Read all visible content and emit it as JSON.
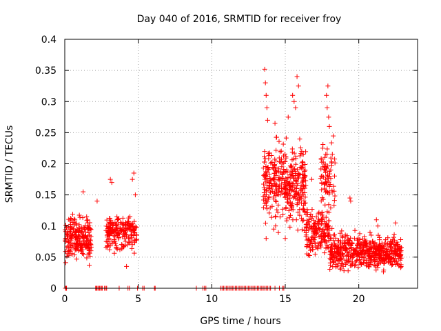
{
  "chart_data": {
    "type": "scatter",
    "title": "Day 040 of 2016, SRMTID for receiver froy",
    "xlabel": "GPS time / hours",
    "ylabel": "SRMTID / TECUs",
    "xlim": [
      0,
      24
    ],
    "ylim": [
      0,
      0.4
    ],
    "xticks": [
      0,
      5,
      10,
      15,
      20
    ],
    "xtick_labels": [
      "0",
      "5",
      "10",
      "15",
      "20"
    ],
    "yticks": [
      0,
      0.05,
      0.1,
      0.15,
      0.2,
      0.25,
      0.3,
      0.35,
      0.4
    ],
    "ytick_labels": [
      "0",
      "0.05",
      "0.1",
      "0.15",
      "0.2",
      "0.25",
      "0.3",
      "0.35",
      "0.4"
    ],
    "grid": true,
    "marker": "+",
    "color": "#ff0000",
    "series": [
      {
        "name": "SRMTID",
        "clusters": [
          {
            "x_range": [
              0.0,
              1.8
            ],
            "y_range": [
              0.03,
              0.13
            ],
            "n": 220
          },
          {
            "x_range": [
              2.8,
              4.9
            ],
            "y_range": [
              0.05,
              0.13
            ],
            "n": 200
          },
          {
            "x_range": [
              13.5,
              15.0
            ],
            "y_range": [
              0.08,
              0.26
            ],
            "n": 180
          },
          {
            "x_range": [
              15.0,
              16.4
            ],
            "y_range": [
              0.08,
              0.25
            ],
            "n": 200
          },
          {
            "x_range": [
              16.4,
              18.0
            ],
            "y_range": [
              0.04,
              0.14
            ],
            "n": 180
          },
          {
            "x_range": [
              17.4,
              18.4
            ],
            "y_range": [
              0.1,
              0.26
            ],
            "n": 80
          },
          {
            "x_range": [
              18.0,
              21.0
            ],
            "y_range": [
              0.02,
              0.1
            ],
            "n": 320
          },
          {
            "x_range": [
              21.0,
              22.9
            ],
            "y_range": [
              0.02,
              0.09
            ],
            "n": 240
          }
        ],
        "points": [
          [
            0.05,
            0.075
          ],
          [
            1.25,
            0.155
          ],
          [
            2.2,
            0.14
          ],
          [
            3.1,
            0.175
          ],
          [
            3.2,
            0.17
          ],
          [
            4.6,
            0.175
          ],
          [
            4.7,
            0.185
          ],
          [
            4.8,
            0.15
          ],
          [
            4.2,
            0.035
          ],
          [
            13.6,
            0.352
          ],
          [
            13.65,
            0.33
          ],
          [
            13.7,
            0.31
          ],
          [
            13.75,
            0.29
          ],
          [
            14.3,
            0.265
          ],
          [
            13.8,
            0.27
          ],
          [
            15.2,
            0.275
          ],
          [
            15.5,
            0.31
          ],
          [
            15.6,
            0.3
          ],
          [
            15.8,
            0.34
          ],
          [
            15.9,
            0.325
          ],
          [
            15.7,
            0.29
          ],
          [
            17.8,
            0.31
          ],
          [
            17.9,
            0.325
          ],
          [
            17.85,
            0.29
          ],
          [
            17.95,
            0.275
          ],
          [
            18.0,
            0.26
          ],
          [
            15.0,
            0.08
          ],
          [
            13.7,
            0.08
          ],
          [
            16.8,
            0.175
          ],
          [
            19.4,
            0.145
          ],
          [
            19.45,
            0.14
          ],
          [
            21.2,
            0.11
          ],
          [
            21.3,
            0.1
          ],
          [
            22.5,
            0.105
          ]
        ],
        "zero_points": [
          0.05,
          0.1,
          0.12,
          2.1,
          2.15,
          2.2,
          2.3,
          2.35,
          2.4,
          2.5,
          2.55,
          2.7,
          2.8,
          2.85,
          3.7,
          4.3,
          4.4,
          4.95,
          5.3,
          5.4,
          6.1,
          6.15,
          8.95,
          9.4,
          9.5,
          9.6,
          10.6,
          10.7,
          10.8,
          10.9,
          11.0,
          11.1,
          11.2,
          11.3,
          11.4,
          11.5,
          11.6,
          11.7,
          11.8,
          11.9,
          12.0,
          12.1,
          12.2,
          12.3,
          12.4,
          12.5,
          12.6,
          12.7,
          12.8,
          12.9,
          13.0,
          13.1,
          13.2,
          13.3,
          13.4,
          13.5,
          13.6,
          13.7,
          13.8,
          13.9,
          14.0,
          14.3,
          14.6,
          14.8,
          14.9
        ]
      }
    ]
  }
}
